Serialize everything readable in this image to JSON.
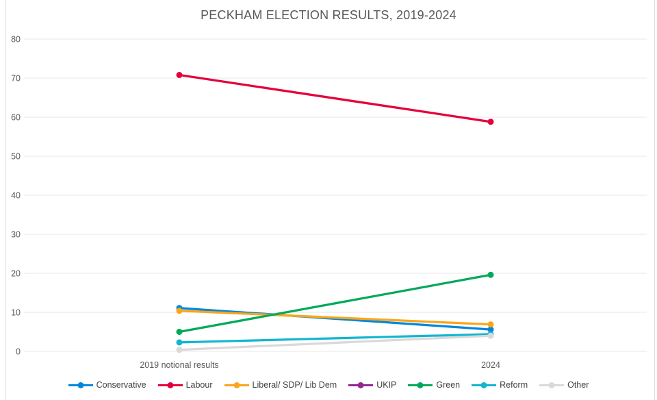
{
  "chart_data": {
    "type": "line",
    "title": "PECKHAM ELECTION RESULTS, 2019-2024",
    "categories": [
      "2019 notional results",
      "2024"
    ],
    "series": [
      {
        "name": "Conservative",
        "color": "#0087DC",
        "values": [
          11.1,
          5.6
        ]
      },
      {
        "name": "Labour",
        "color": "#E4003B",
        "values": [
          70.8,
          58.8
        ]
      },
      {
        "name": "Liberal/ SDP/ Lib Dem",
        "color": "#FAA61A",
        "values": [
          10.4,
          6.9
        ]
      },
      {
        "name": "UKIP",
        "color": "#93278F",
        "values": [
          null,
          null
        ]
      },
      {
        "name": "Green",
        "color": "#02A95B",
        "values": [
          5.0,
          19.6
        ]
      },
      {
        "name": "Reform",
        "color": "#12B6CF",
        "values": [
          2.3,
          4.4
        ]
      },
      {
        "name": "Other",
        "color": "#D9D9D9",
        "values": [
          0.4,
          4.0
        ]
      }
    ],
    "xlabel": "",
    "ylabel": "",
    "ylim": [
      0,
      80
    ],
    "yticks": [
      0,
      10,
      20,
      30,
      40,
      50,
      60,
      70,
      80
    ],
    "grid": true,
    "legend_position": "bottom",
    "axis_label_color": "#595959",
    "legend_text_color": "#404040",
    "grid_color": "#E7E7E7",
    "background_color": "#FFFFFF"
  }
}
